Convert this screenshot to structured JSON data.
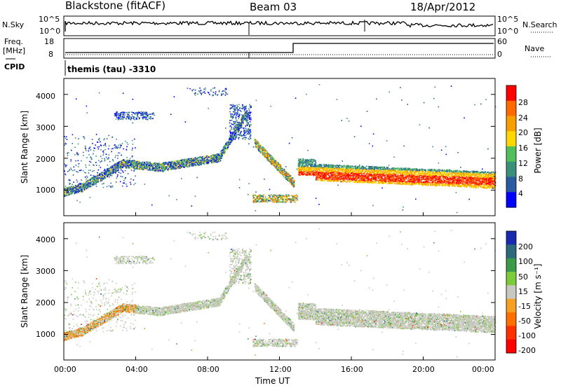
{
  "header": {
    "station": "Blackstone (fitACF)",
    "beam": "Beam 03",
    "date": "18/Apr/2012"
  },
  "top_panel": {
    "left_label": "N.Sky",
    "right_label": "N.Search",
    "left_ticks": [
      "10^5",
      "10^0"
    ],
    "right_ticks": [
      "10^5",
      "10^0"
    ]
  },
  "freq_panel": {
    "left_label_line1": "Freq.",
    "left_label_line2": "[MHz]",
    "right_label": "Nave",
    "left_ticks": [
      "18",
      "8"
    ],
    "right_ticks": [
      "60",
      "0"
    ],
    "cpid_label": "CPID",
    "cpid_value": "themis (tau) -3310"
  },
  "chart_data": [
    {
      "type": "heatmap",
      "title": "",
      "ylabel": "Slant Range [km]",
      "xlabel": "",
      "ylim": [
        200,
        4500
      ],
      "yticks": [
        "4000",
        "3000",
        "2000",
        "1000"
      ],
      "colorbar_label": "Power [dB]",
      "colorbar_ticks": [
        "28",
        "24",
        "20",
        "16",
        "12",
        "8",
        "4"
      ],
      "colorbar_colors": [
        "#ff0000",
        "#ff6a00",
        "#f5a000",
        "#ffd700",
        "#52c05a",
        "#3a8f7a",
        "#2a5aa0",
        "#0000ff"
      ],
      "scatter_bands": [
        {
          "x0": 0.0,
          "x1": 1.0,
          "y0": 800,
          "y1": 1100
        },
        {
          "x0": 1.0,
          "x1": 3.5,
          "y0": 1000,
          "y1": 1700
        },
        {
          "x0": 3.5,
          "x1": 8.5,
          "y0": 1600,
          "y1": 2000
        },
        {
          "x0": 8.5,
          "x1": 10.5,
          "y0": 2000,
          "y1": 3700
        },
        {
          "x0": 10.8,
          "x1": 12.7,
          "y0": 1200,
          "y1": 2600
        },
        {
          "x0": 13.0,
          "x1": 24.0,
          "y0": 1200,
          "y1": 2000
        }
      ]
    },
    {
      "type": "heatmap",
      "title": "",
      "ylabel": "Slant Range [km]",
      "xlabel": "Time UT",
      "ylim": [
        200,
        4500
      ],
      "yticks": [
        "4000",
        "3000",
        "2000",
        "1000"
      ],
      "xticks": [
        "00:00",
        "04:00",
        "08:00",
        "12:00",
        "16:00",
        "20:00",
        "00:00"
      ],
      "xlim_hours": [
        0,
        24
      ],
      "colorbar_label": "Velocity [m s⁻¹]",
      "colorbar_ticks": [
        "200",
        "100",
        "50",
        "15",
        "-15",
        "-50",
        "-100",
        "-200"
      ],
      "colorbar_colors": [
        "#1a2ab0",
        "#2a6a7a",
        "#3a9a4a",
        "#7ccc3a",
        "#c8c8c0",
        "#f5a020",
        "#ff7000",
        "#ff3000",
        "#ff0000"
      ]
    }
  ]
}
